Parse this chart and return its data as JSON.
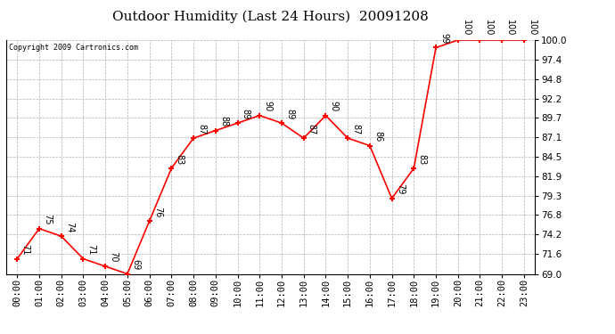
{
  "title": "Outdoor Humidity (Last 24 Hours)  20091208",
  "copyright_text": "Copyright 2009 Cartronics.com",
  "hours": [
    "00:00",
    "01:00",
    "02:00",
    "03:00",
    "04:00",
    "05:00",
    "06:00",
    "07:00",
    "08:00",
    "09:00",
    "10:00",
    "11:00",
    "12:00",
    "13:00",
    "14:00",
    "15:00",
    "16:00",
    "17:00",
    "18:00",
    "19:00",
    "20:00",
    "21:00",
    "22:00",
    "23:00"
  ],
  "values": [
    71,
    75,
    74,
    71,
    70,
    69,
    76,
    83,
    87,
    88,
    89,
    90,
    89,
    87,
    90,
    87,
    86,
    79,
    83,
    99,
    100,
    100,
    100,
    100
  ],
  "line_color": "#ff0000",
  "marker_color": "#ff0000",
  "background_color": "#ffffff",
  "plot_bg_color": "#ffffff",
  "grid_color": "#b0b0b0",
  "title_fontsize": 11,
  "tick_label_fontsize": 7.5,
  "ylim": [
    69.0,
    100.0
  ],
  "yticks": [
    69.0,
    71.6,
    74.2,
    76.8,
    79.3,
    81.9,
    84.5,
    87.1,
    89.7,
    92.2,
    94.8,
    97.4,
    100.0
  ]
}
